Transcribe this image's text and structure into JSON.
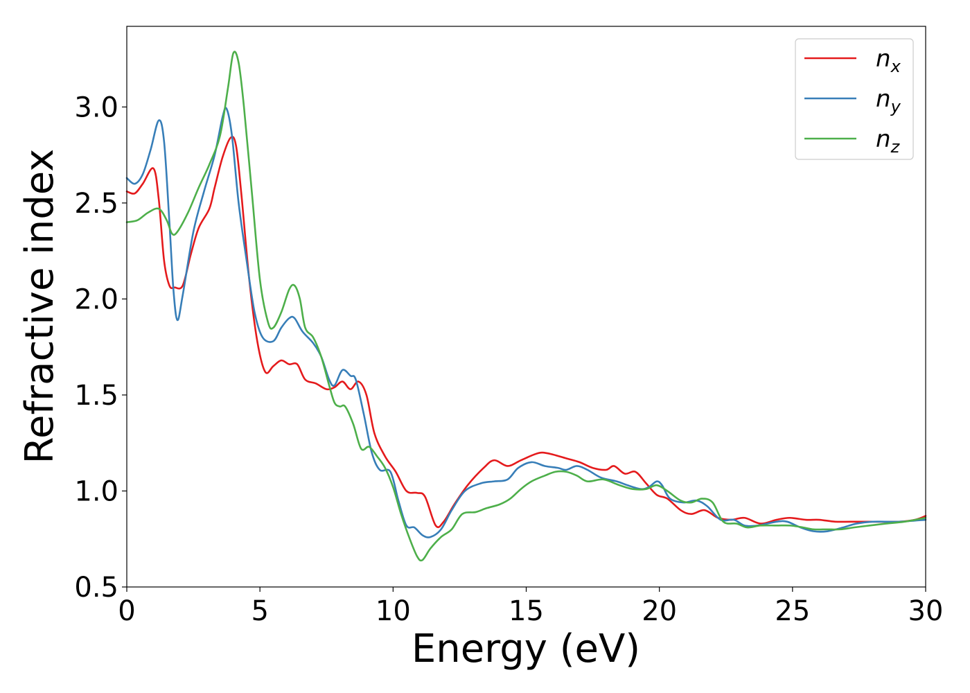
{
  "chart_data": {
    "type": "line",
    "title": "",
    "xlabel": "Energy (eV)",
    "ylabel": "Refractive index",
    "xlim": [
      0,
      30
    ],
    "ylim": [
      0.5,
      3.42
    ],
    "xticks": [
      0,
      5,
      10,
      15,
      20,
      25,
      30
    ],
    "xtick_labels": [
      "0",
      "5",
      "10",
      "15",
      "20",
      "25",
      "30"
    ],
    "yticks": [
      0.5,
      1.0,
      1.5,
      2.0,
      2.5,
      3.0
    ],
    "ytick_labels": [
      "0.5",
      "1.0",
      "1.5",
      "2.0",
      "2.5",
      "3.0"
    ],
    "grid": false,
    "legend_position": "top-right",
    "series": [
      {
        "name": "n",
        "subscript": "x",
        "color": "#e41a1c",
        "points": [
          [
            0,
            2.56
          ],
          [
            0.3,
            2.55
          ],
          [
            0.6,
            2.6
          ],
          [
            1.0,
            2.68
          ],
          [
            1.2,
            2.52
          ],
          [
            1.4,
            2.2
          ],
          [
            1.6,
            2.07
          ],
          [
            1.8,
            2.06
          ],
          [
            2.1,
            2.07
          ],
          [
            2.4,
            2.23
          ],
          [
            2.7,
            2.37
          ],
          [
            3.1,
            2.47
          ],
          [
            3.3,
            2.58
          ],
          [
            3.6,
            2.74
          ],
          [
            3.9,
            2.84
          ],
          [
            4.1,
            2.8
          ],
          [
            4.3,
            2.55
          ],
          [
            4.6,
            2.1
          ],
          [
            4.9,
            1.78
          ],
          [
            5.2,
            1.62
          ],
          [
            5.5,
            1.65
          ],
          [
            5.8,
            1.68
          ],
          [
            6.1,
            1.66
          ],
          [
            6.4,
            1.66
          ],
          [
            6.7,
            1.58
          ],
          [
            7.1,
            1.56
          ],
          [
            7.5,
            1.53
          ],
          [
            7.8,
            1.54
          ],
          [
            8.1,
            1.57
          ],
          [
            8.4,
            1.53
          ],
          [
            8.7,
            1.57
          ],
          [
            9.0,
            1.5
          ],
          [
            9.3,
            1.3
          ],
          [
            9.7,
            1.18
          ],
          [
            10.1,
            1.1
          ],
          [
            10.5,
            1.0
          ],
          [
            10.9,
            0.99
          ],
          [
            11.2,
            0.97
          ],
          [
            11.6,
            0.82
          ],
          [
            11.9,
            0.84
          ],
          [
            12.3,
            0.93
          ],
          [
            12.8,
            1.03
          ],
          [
            13.4,
            1.12
          ],
          [
            13.8,
            1.16
          ],
          [
            14.3,
            1.13
          ],
          [
            14.8,
            1.16
          ],
          [
            15.3,
            1.19
          ],
          [
            15.6,
            1.2
          ],
          [
            16.0,
            1.19
          ],
          [
            16.5,
            1.17
          ],
          [
            17.0,
            1.15
          ],
          [
            17.5,
            1.12
          ],
          [
            18.0,
            1.11
          ],
          [
            18.3,
            1.13
          ],
          [
            18.7,
            1.09
          ],
          [
            19.1,
            1.1
          ],
          [
            19.5,
            1.04
          ],
          [
            19.9,
            0.98
          ],
          [
            20.3,
            0.96
          ],
          [
            20.8,
            0.9
          ],
          [
            21.2,
            0.88
          ],
          [
            21.7,
            0.9
          ],
          [
            22.2,
            0.86
          ],
          [
            22.7,
            0.85
          ],
          [
            23.2,
            0.86
          ],
          [
            23.8,
            0.83
          ],
          [
            24.4,
            0.85
          ],
          [
            24.9,
            0.86
          ],
          [
            25.5,
            0.85
          ],
          [
            26.0,
            0.85
          ],
          [
            26.6,
            0.84
          ],
          [
            27.2,
            0.84
          ],
          [
            28.0,
            0.84
          ],
          [
            29.0,
            0.84
          ],
          [
            29.6,
            0.85
          ],
          [
            30,
            0.87
          ]
        ]
      },
      {
        "name": "n",
        "subscript": "y",
        "color": "#377eb8",
        "points": [
          [
            0,
            2.63
          ],
          [
            0.3,
            2.6
          ],
          [
            0.6,
            2.65
          ],
          [
            0.9,
            2.78
          ],
          [
            1.2,
            2.93
          ],
          [
            1.4,
            2.82
          ],
          [
            1.6,
            2.4
          ],
          [
            1.75,
            2.05
          ],
          [
            1.9,
            1.89
          ],
          [
            2.1,
            2.02
          ],
          [
            2.5,
            2.35
          ],
          [
            2.9,
            2.56
          ],
          [
            3.3,
            2.75
          ],
          [
            3.6,
            2.95
          ],
          [
            3.75,
            2.99
          ],
          [
            3.95,
            2.85
          ],
          [
            4.2,
            2.5
          ],
          [
            4.5,
            2.2
          ],
          [
            4.8,
            1.93
          ],
          [
            5.1,
            1.8
          ],
          [
            5.5,
            1.78
          ],
          [
            5.8,
            1.85
          ],
          [
            6.1,
            1.9
          ],
          [
            6.3,
            1.9
          ],
          [
            6.6,
            1.83
          ],
          [
            7.0,
            1.77
          ],
          [
            7.3,
            1.7
          ],
          [
            7.6,
            1.58
          ],
          [
            7.8,
            1.55
          ],
          [
            8.1,
            1.63
          ],
          [
            8.4,
            1.6
          ],
          [
            8.6,
            1.58
          ],
          [
            8.9,
            1.4
          ],
          [
            9.2,
            1.2
          ],
          [
            9.5,
            1.11
          ],
          [
            9.9,
            1.1
          ],
          [
            10.2,
            0.95
          ],
          [
            10.5,
            0.82
          ],
          [
            10.8,
            0.81
          ],
          [
            11.1,
            0.77
          ],
          [
            11.4,
            0.76
          ],
          [
            11.8,
            0.8
          ],
          [
            12.2,
            0.9
          ],
          [
            12.7,
            1.0
          ],
          [
            13.3,
            1.04
          ],
          [
            13.8,
            1.05
          ],
          [
            14.3,
            1.06
          ],
          [
            14.7,
            1.12
          ],
          [
            15.2,
            1.15
          ],
          [
            15.7,
            1.13
          ],
          [
            16.2,
            1.12
          ],
          [
            16.5,
            1.11
          ],
          [
            16.9,
            1.13
          ],
          [
            17.3,
            1.11
          ],
          [
            17.8,
            1.07
          ],
          [
            18.4,
            1.05
          ],
          [
            18.8,
            1.03
          ],
          [
            19.3,
            1.01
          ],
          [
            19.6,
            1.02
          ],
          [
            19.9,
            1.05
          ],
          [
            20.1,
            1.03
          ],
          [
            20.4,
            0.96
          ],
          [
            20.9,
            0.94
          ],
          [
            21.4,
            0.95
          ],
          [
            21.8,
            0.92
          ],
          [
            22.3,
            0.85
          ],
          [
            22.8,
            0.85
          ],
          [
            23.2,
            0.82
          ],
          [
            23.7,
            0.82
          ],
          [
            24.4,
            0.84
          ],
          [
            24.8,
            0.84
          ],
          [
            25.3,
            0.81
          ],
          [
            25.8,
            0.79
          ],
          [
            26.3,
            0.79
          ],
          [
            26.9,
            0.81
          ],
          [
            27.4,
            0.83
          ],
          [
            28.0,
            0.84
          ],
          [
            29.0,
            0.84
          ],
          [
            30,
            0.85
          ]
        ]
      },
      {
        "name": "n",
        "subscript": "z",
        "color": "#4daf4a",
        "points": [
          [
            0,
            2.4
          ],
          [
            0.4,
            2.41
          ],
          [
            0.8,
            2.45
          ],
          [
            1.2,
            2.47
          ],
          [
            1.5,
            2.41
          ],
          [
            1.7,
            2.34
          ],
          [
            1.9,
            2.35
          ],
          [
            2.3,
            2.45
          ],
          [
            2.7,
            2.58
          ],
          [
            3.1,
            2.7
          ],
          [
            3.5,
            2.85
          ],
          [
            3.8,
            3.1
          ],
          [
            4.0,
            3.28
          ],
          [
            4.2,
            3.23
          ],
          [
            4.4,
            3.0
          ],
          [
            4.7,
            2.55
          ],
          [
            5.0,
            2.1
          ],
          [
            5.3,
            1.88
          ],
          [
            5.5,
            1.85
          ],
          [
            5.8,
            1.93
          ],
          [
            6.1,
            2.05
          ],
          [
            6.3,
            2.07
          ],
          [
            6.5,
            2.0
          ],
          [
            6.7,
            1.85
          ],
          [
            7.0,
            1.8
          ],
          [
            7.3,
            1.7
          ],
          [
            7.6,
            1.55
          ],
          [
            7.8,
            1.46
          ],
          [
            8.0,
            1.44
          ],
          [
            8.2,
            1.44
          ],
          [
            8.5,
            1.35
          ],
          [
            8.8,
            1.22
          ],
          [
            9.1,
            1.23
          ],
          [
            9.4,
            1.18
          ],
          [
            9.7,
            1.12
          ],
          [
            10.0,
            1.02
          ],
          [
            10.3,
            0.88
          ],
          [
            10.6,
            0.76
          ],
          [
            10.9,
            0.66
          ],
          [
            11.1,
            0.64
          ],
          [
            11.4,
            0.7
          ],
          [
            11.8,
            0.76
          ],
          [
            12.2,
            0.8
          ],
          [
            12.6,
            0.88
          ],
          [
            13.1,
            0.89
          ],
          [
            13.5,
            0.91
          ],
          [
            14.0,
            0.93
          ],
          [
            14.4,
            0.96
          ],
          [
            14.8,
            1.01
          ],
          [
            15.2,
            1.05
          ],
          [
            15.7,
            1.08
          ],
          [
            16.1,
            1.1
          ],
          [
            16.5,
            1.1
          ],
          [
            16.9,
            1.08
          ],
          [
            17.3,
            1.05
          ],
          [
            17.9,
            1.06
          ],
          [
            18.5,
            1.03
          ],
          [
            19.0,
            1.01
          ],
          [
            19.5,
            1.01
          ],
          [
            19.9,
            1.03
          ],
          [
            20.3,
            1.0
          ],
          [
            20.8,
            0.95
          ],
          [
            21.2,
            0.94
          ],
          [
            21.6,
            0.96
          ],
          [
            22.0,
            0.94
          ],
          [
            22.4,
            0.84
          ],
          [
            22.9,
            0.83
          ],
          [
            23.3,
            0.81
          ],
          [
            23.8,
            0.82
          ],
          [
            24.4,
            0.82
          ],
          [
            24.9,
            0.82
          ],
          [
            25.4,
            0.81
          ],
          [
            25.8,
            0.8
          ],
          [
            26.3,
            0.8
          ],
          [
            26.8,
            0.8
          ],
          [
            27.3,
            0.81
          ],
          [
            27.9,
            0.82
          ],
          [
            28.5,
            0.83
          ],
          [
            29.2,
            0.84
          ],
          [
            30,
            0.86
          ]
        ]
      }
    ]
  }
}
